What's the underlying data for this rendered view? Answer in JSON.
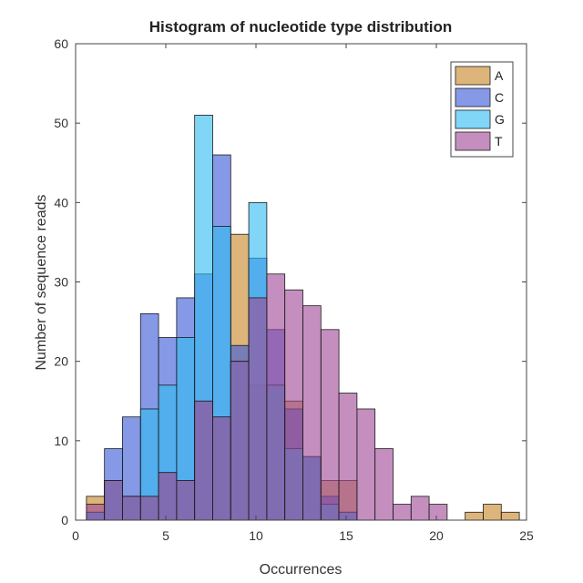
{
  "chart_data": {
    "type": "bar",
    "subtype": "overlapping-histogram",
    "title": "Histogram of nucleotide type distribution",
    "xlabel": "Occurrences",
    "ylabel": "Number of sequence reads",
    "xlim": [
      0,
      25
    ],
    "ylim": [
      0,
      60
    ],
    "xticks": [
      "0",
      "5",
      "10",
      "15",
      "20",
      "25"
    ],
    "yticks": [
      "0",
      "10",
      "20",
      "30",
      "40",
      "50",
      "60"
    ],
    "bin_edges": [
      0.6,
      1.6,
      2.6,
      3.6,
      4.6,
      5.6,
      6.6,
      7.6,
      8.6,
      9.6,
      10.6,
      11.6,
      12.6,
      13.6,
      14.6,
      15.6,
      16.6,
      17.6,
      18.6,
      19.6,
      20.6,
      21.6,
      22.6,
      23.6,
      24.6
    ],
    "grid": false,
    "legend_position": "top-right",
    "series": [
      {
        "name": "A",
        "color": "#c8882a",
        "values": [
          3,
          5,
          3,
          3,
          6,
          5,
          15,
          13,
          36,
          17,
          17,
          15,
          8,
          5,
          5,
          0,
          0,
          0,
          0,
          0,
          0,
          1,
          2,
          1
        ]
      },
      {
        "name": "C",
        "color": "#3a5bd9",
        "values": [
          1,
          9,
          13,
          26,
          23,
          28,
          31,
          46,
          22,
          33,
          24,
          14,
          8,
          3,
          1,
          0,
          0,
          0,
          0,
          0,
          0,
          0,
          0,
          0
        ]
      },
      {
        "name": "G",
        "color": "#33bbf0",
        "values": [
          1,
          5,
          3,
          14,
          17,
          23,
          51,
          37,
          20,
          40,
          17,
          9,
          8,
          2,
          1,
          0,
          0,
          0,
          0,
          0,
          0,
          0,
          0,
          0
        ]
      },
      {
        "name": "T",
        "color": "#a04a96",
        "values": [
          2,
          5,
          3,
          3,
          6,
          5,
          15,
          13,
          20,
          28,
          31,
          29,
          27,
          24,
          16,
          14,
          9,
          2,
          3,
          2,
          0,
          0,
          0,
          0
        ]
      }
    ]
  }
}
